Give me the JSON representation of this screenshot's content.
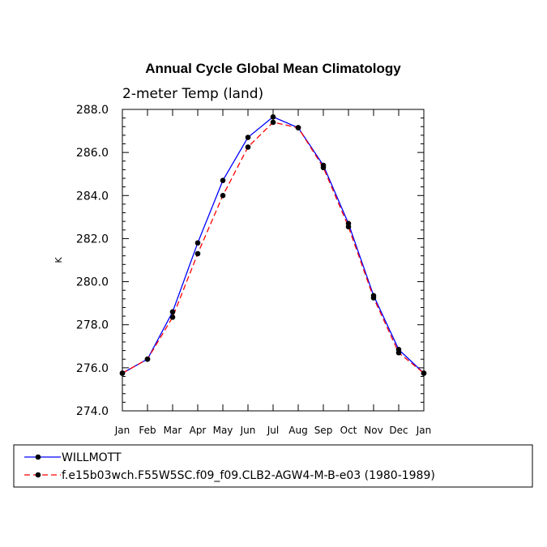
{
  "chart_data": {
    "type": "line",
    "title": "Annual Cycle Global Mean Climatology",
    "subtitle": "2-meter Temp (land)",
    "xlabel": "",
    "ylabel": "K",
    "categories": [
      "Jan",
      "Feb",
      "Mar",
      "Apr",
      "May",
      "Jun",
      "Jul",
      "Aug",
      "Sep",
      "Oct",
      "Nov",
      "Dec",
      "Jan"
    ],
    "ylim": [
      274.0,
      288.0
    ],
    "yticks": [
      "274.0",
      "276.0",
      "278.0",
      "280.0",
      "282.0",
      "284.0",
      "286.0",
      "288.0"
    ],
    "series": [
      {
        "name": "WILLMOTT",
        "color": "#0000ff",
        "style": "solid",
        "values": [
          275.75,
          276.4,
          278.6,
          281.8,
          284.7,
          286.7,
          287.65,
          287.15,
          285.4,
          282.7,
          279.35,
          276.85,
          275.75
        ]
      },
      {
        "name": "f.e15b03wch.F55W5SC.f09_f09.CLB2-AGW4-M-B-e03 (1980-1989)",
        "color": "#ff0000",
        "style": "dashed",
        "values": [
          275.75,
          276.4,
          278.35,
          281.3,
          284.0,
          286.25,
          287.4,
          287.15,
          285.3,
          282.55,
          279.25,
          276.7,
          275.75
        ]
      }
    ],
    "legend_position": "bottom"
  }
}
